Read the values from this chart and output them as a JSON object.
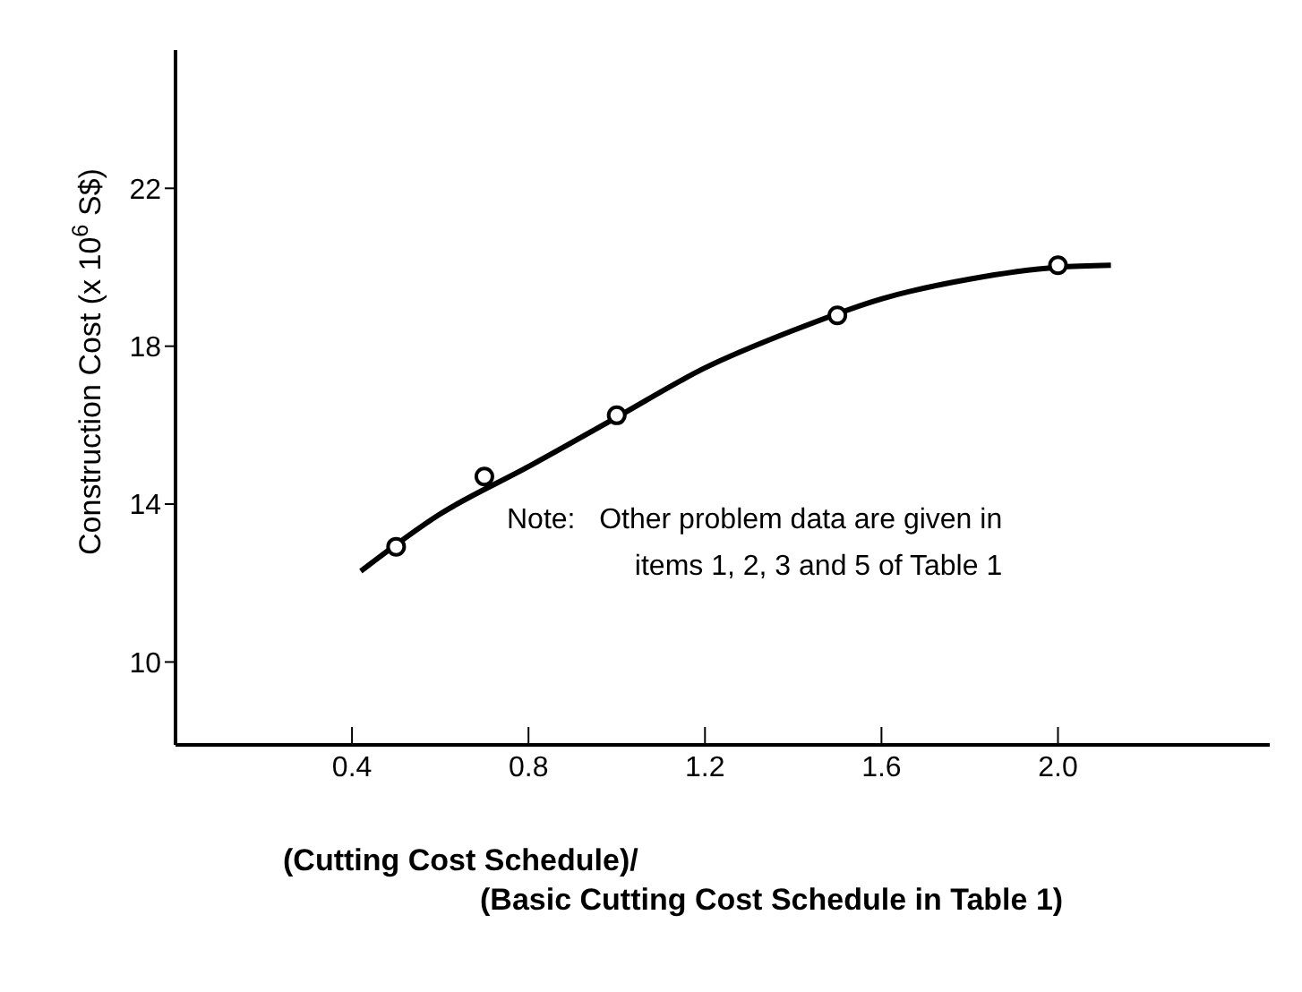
{
  "chart_data": {
    "type": "line",
    "xlabel": "(Cutting Cost Schedule)/\n(Basic Cutting Cost Schedule in Table 1)",
    "ylabel": "Construction   Cost (x 10$^{6}$ S$)",
    "annotations": [
      "Note:   Other problem data are given in\nitems 1, 2, 3 and 5 of Table 1"
    ],
    "xlim": [
      0,
      2.48
    ],
    "ylim": [
      7.9,
      25.5
    ],
    "xticks": [
      0.4,
      0.8,
      1.2,
      1.6,
      {
        "value": 2,
        "label": "2.0"
      }
    ],
    "yticks": [
      10,
      14,
      18,
      22
    ],
    "grid": false,
    "series": [
      {
        "color": "#000000",
        "marker": "none",
        "x": [
          0.42,
          0.6,
          0.8,
          1.0,
          1.2,
          1.4,
          1.6,
          1.8,
          2.0,
          2.12
        ],
        "values": [
          12.3,
          13.75,
          14.95,
          16.2,
          17.45,
          18.4,
          19.2,
          19.7,
          20.0,
          20.05
        ]
      },
      {
        "type": "scatter",
        "color": "#000000",
        "marker": "circle",
        "x": [
          0.5,
          0.7,
          1.0,
          1.5,
          2.0
        ],
        "values": [
          12.92,
          14.7,
          16.25,
          18.78,
          20.05
        ]
      }
    ]
  }
}
